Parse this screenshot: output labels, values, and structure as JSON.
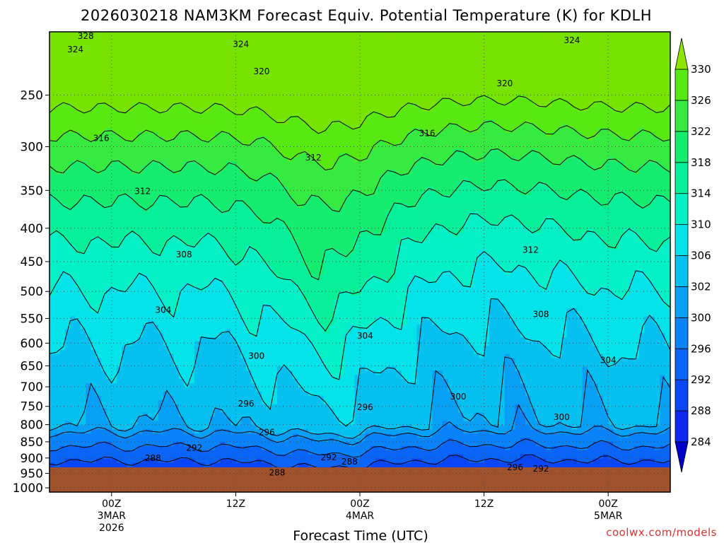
{
  "chart_data": {
    "type": "heatmap",
    "title": "2026030218 NAM3KM Forecast Equiv. Potential Temperature (K) for KDLH",
    "xlabel": "Forecast Time (UTC)",
    "ylabel": "",
    "x_ticks": [
      {
        "line1": "00Z",
        "line2": "3MAR",
        "line3": "2026"
      },
      {
        "line1": "12Z",
        "line2": "",
        "line3": ""
      },
      {
        "line1": "00Z",
        "line2": "4MAR",
        "line3": ""
      },
      {
        "line1": "12Z",
        "line2": "",
        "line3": ""
      },
      {
        "line1": "00Z",
        "line2": "5MAR",
        "line3": ""
      }
    ],
    "x_tick_hours": [
      6,
      18,
      30,
      42,
      54
    ],
    "x_range_hours": [
      0,
      60
    ],
    "y_ticks": [
      250,
      300,
      350,
      400,
      450,
      500,
      550,
      600,
      650,
      700,
      750,
      800,
      850,
      900,
      950,
      1000
    ],
    "y_unit": "hPa",
    "y_scale": "log",
    "y_range": [
      200,
      1015
    ],
    "ground_level_hPa": 965,
    "colorbar": {
      "levels": [
        284,
        288,
        292,
        296,
        300,
        302,
        306,
        310,
        314,
        318,
        322,
        326,
        330
      ],
      "colors": [
        "#1212e6",
        "#0e28f0",
        "#0a46f6",
        "#0a64f8",
        "#0a82f8",
        "#08a0f4",
        "#06c0f0",
        "#04e2ea",
        "#04f0c6",
        "#08ef9a",
        "#16ec70",
        "#36ea42",
        "#58e812",
        "#78e200"
      ],
      "min_color": "#0000c8",
      "max_color": "#8ee400"
    },
    "ground_color": "#a0522d",
    "grid": true,
    "contour_labels": [
      {
        "value": 328,
        "hour": 3.5,
        "p": 203
      },
      {
        "value": 324,
        "hour": 2.5,
        "p": 213
      },
      {
        "value": 324,
        "hour": 18.5,
        "p": 209
      },
      {
        "value": 324,
        "hour": 50.5,
        "p": 206
      },
      {
        "value": 320,
        "hour": 20.5,
        "p": 230
      },
      {
        "value": 320,
        "hour": 44,
        "p": 240
      },
      {
        "value": 316,
        "hour": 5,
        "p": 291
      },
      {
        "value": 316,
        "hour": 36.5,
        "p": 286
      },
      {
        "value": 312,
        "hour": 25.5,
        "p": 312
      },
      {
        "value": 312,
        "hour": 9,
        "p": 351
      },
      {
        "value": 312,
        "hour": 46.5,
        "p": 432
      },
      {
        "value": 308,
        "hour": 13,
        "p": 439
      },
      {
        "value": 308,
        "hour": 47.5,
        "p": 542
      },
      {
        "value": 304,
        "hour": 11,
        "p": 534
      },
      {
        "value": 304,
        "hour": 30.5,
        "p": 585
      },
      {
        "value": 304,
        "hour": 54,
        "p": 637
      },
      {
        "value": 300,
        "hour": 20,
        "p": 628
      },
      {
        "value": 300,
        "hour": 39.5,
        "p": 725
      },
      {
        "value": 300,
        "hour": 49.5,
        "p": 779
      },
      {
        "value": 296,
        "hour": 19,
        "p": 743
      },
      {
        "value": 296,
        "hour": 30.5,
        "p": 752
      },
      {
        "value": 296,
        "hour": 21,
        "p": 822
      },
      {
        "value": 296,
        "hour": 45,
        "p": 930
      },
      {
        "value": 292,
        "hour": 14,
        "p": 868
      },
      {
        "value": 292,
        "hour": 27,
        "p": 898
      },
      {
        "value": 292,
        "hour": 47.5,
        "p": 935
      },
      {
        "value": 288,
        "hour": 10,
        "p": 900
      },
      {
        "value": 288,
        "hour": 29,
        "p": 912
      },
      {
        "value": 288,
        "hour": 22,
        "p": 948
      }
    ],
    "legend": "right"
  },
  "credit": "coolwx.com/models"
}
